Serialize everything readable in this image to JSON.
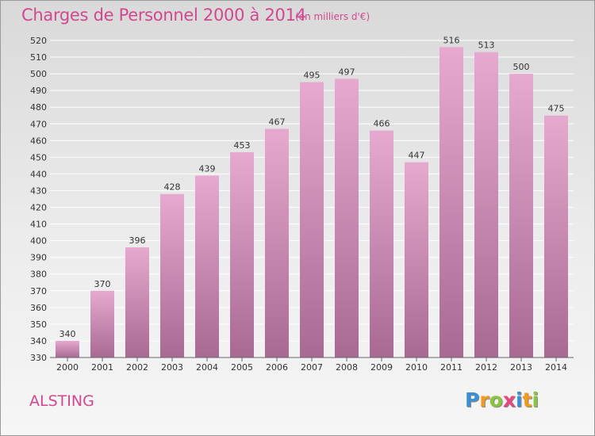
{
  "header": {
    "title": "Charges de Personnel 2000 à 2014",
    "subtitle": "(en milliers d'€)"
  },
  "footer": {
    "commune": "ALSTING",
    "logo": [
      "P",
      "r",
      "o",
      "x",
      "i",
      "t",
      "i"
    ],
    "logo_colors": [
      "#3a8fd6",
      "#f39a1e",
      "#8bc53f",
      "#e8467c",
      "#3a8fd6",
      "#f39a1e",
      "#8bc53f"
    ]
  },
  "colors": {
    "bar_top": "#e6a9cf",
    "bar_bottom": "#a86a93",
    "grid": "#ffffff"
  },
  "chart_data": {
    "type": "bar",
    "title": "Charges de Personnel 2000 à 2014",
    "subtitle": "(en milliers d'€)",
    "categories": [
      "2000",
      "2001",
      "2002",
      "2003",
      "2004",
      "2005",
      "2006",
      "2007",
      "2008",
      "2009",
      "2010",
      "2011",
      "2012",
      "2013",
      "2014"
    ],
    "values": [
      340,
      370,
      396,
      428,
      439,
      453,
      467,
      495,
      497,
      466,
      447,
      516,
      513,
      500,
      475
    ],
    "ylim": [
      330,
      520
    ],
    "yticks": [
      330,
      340,
      350,
      360,
      370,
      380,
      390,
      400,
      410,
      420,
      430,
      440,
      450,
      460,
      470,
      480,
      490,
      500,
      510,
      520
    ],
    "grid": true,
    "data_labels": true
  }
}
